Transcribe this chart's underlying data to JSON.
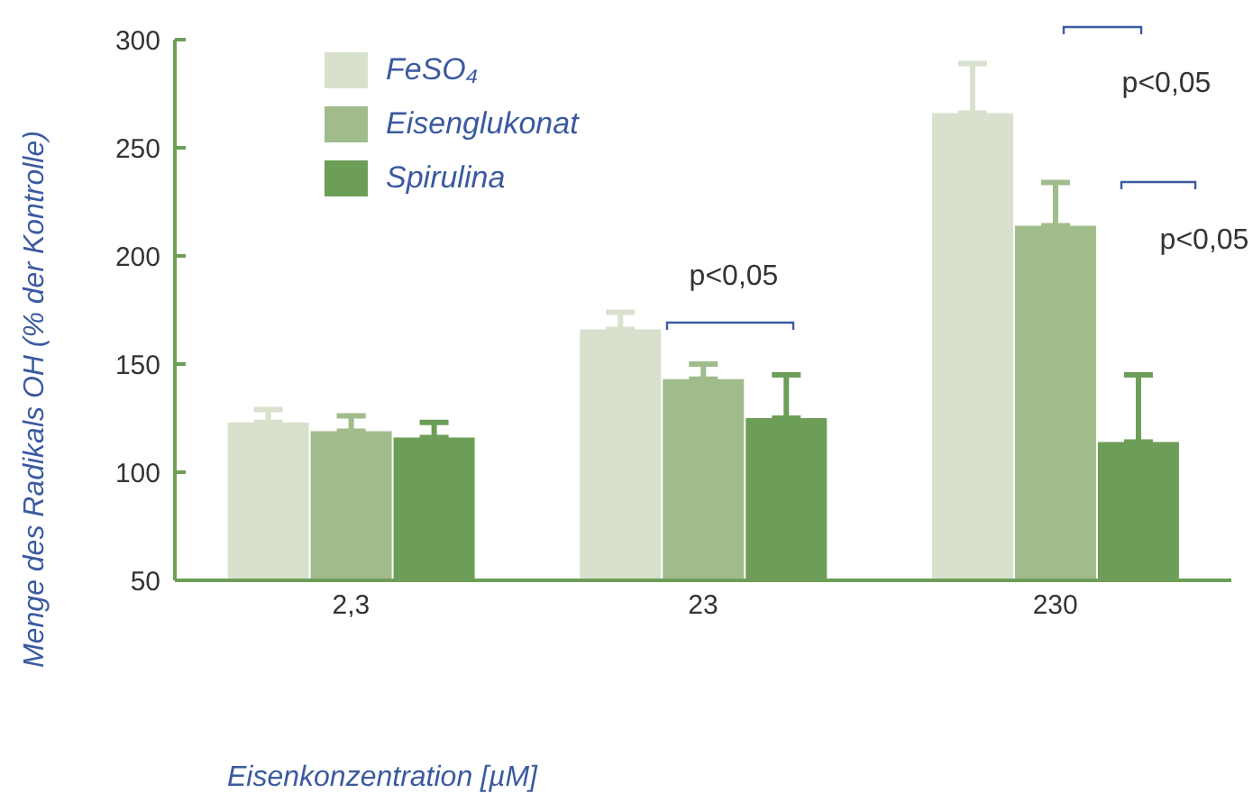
{
  "chart_data": {
    "type": "bar",
    "xlabel": "Eisenkonzentration [µM]",
    "ylabel": "Menge des Radikals OH (% der Kontrolle)",
    "categories": [
      "2,3",
      "23",
      "230"
    ],
    "series": [
      {
        "name": "FeSO₄",
        "color": "#d8e1cd",
        "values": [
          123,
          166,
          266
        ],
        "errors": [
          [
            123,
            129
          ],
          [
            166,
            174
          ],
          [
            266,
            289
          ]
        ]
      },
      {
        "name": "Eisenglukonat",
        "color": "#a1bc8b",
        "values": [
          119,
          143,
          214
        ],
        "errors": [
          [
            119,
            126
          ],
          [
            143,
            150
          ],
          [
            214,
            234
          ]
        ]
      },
      {
        "name": "Spirulina",
        "color": "#6d9e58",
        "values": [
          116,
          125,
          114
        ],
        "errors": [
          [
            116,
            123
          ],
          [
            125,
            145
          ],
          [
            114,
            145
          ]
        ]
      }
    ],
    "annotations": [
      "p<0,05",
      "p<0,05",
      "p<0,05"
    ],
    "ylim": [
      50,
      300
    ],
    "yticks": [
      50,
      100,
      150,
      200,
      250,
      300
    ],
    "grid": false,
    "legend": "top left"
  }
}
